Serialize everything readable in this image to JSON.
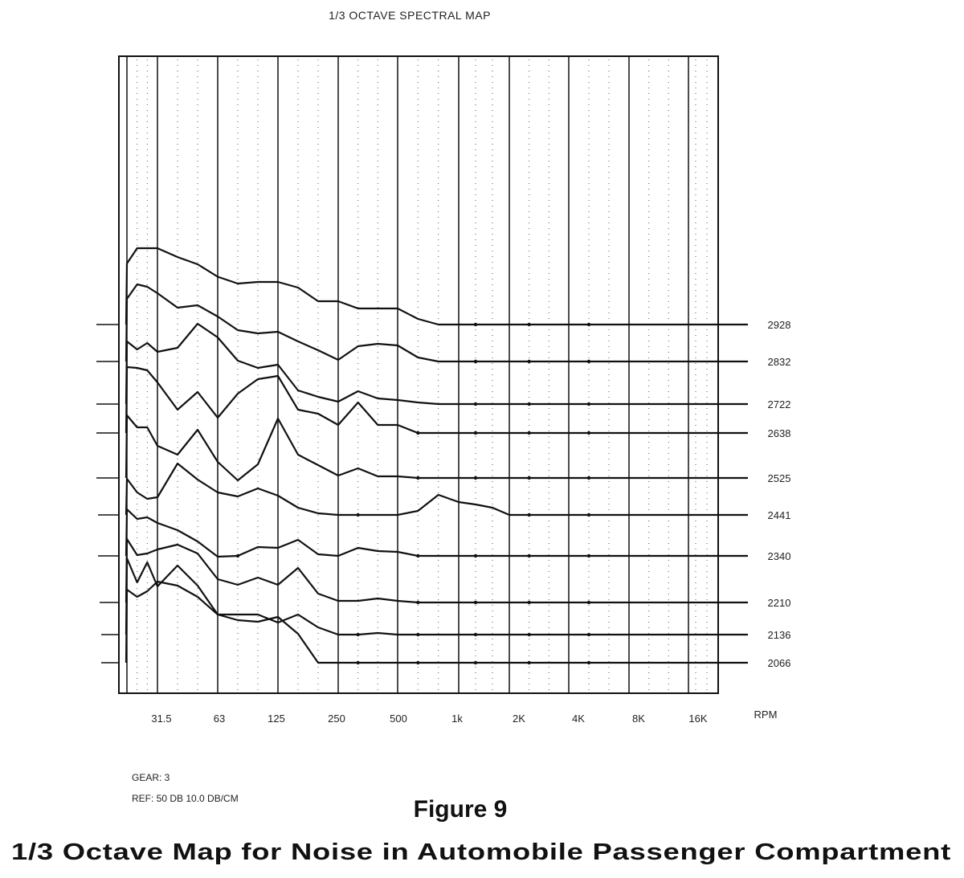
{
  "chart_data": {
    "type": "line",
    "title": "1/3 OCTAVE SPECTRAL MAP",
    "x_tick_labels": [
      "31.5",
      "63",
      "125",
      "250",
      "500",
      "1k",
      "2K",
      "4K",
      "8K",
      "16K"
    ],
    "x_axis_unit_label": "RPM",
    "x_tick_bands": [
      2,
      5,
      8,
      11,
      14,
      17,
      20,
      23,
      26,
      29
    ],
    "y_scale_db_per_cm": 10.0,
    "reference_db": 50,
    "series": [
      {
        "name": "2928",
        "values": [
          [
            0,
            0
          ],
          [
            1,
            1.52
          ],
          [
            2,
            1.9
          ],
          [
            3,
            1.9
          ],
          [
            4,
            1.9
          ],
          [
            5,
            1.68
          ],
          [
            6,
            1.5
          ],
          [
            7,
            1.19
          ],
          [
            8,
            1.02
          ],
          [
            9,
            1.06
          ],
          [
            10,
            1.06
          ],
          [
            11,
            0.92
          ],
          [
            12,
            0.58
          ],
          [
            13,
            0.58
          ],
          [
            14,
            0.4
          ],
          [
            15,
            0.4
          ],
          [
            16,
            0.4
          ],
          [
            17,
            0.14
          ],
          [
            18,
            0
          ],
          [
            19,
            0
          ],
          [
            20,
            0
          ],
          [
            21,
            0
          ],
          [
            22,
            0
          ],
          [
            23,
            0
          ],
          [
            24,
            0
          ],
          [
            25,
            0
          ],
          [
            26,
            0
          ],
          [
            27,
            0
          ],
          [
            28,
            0
          ],
          [
            29,
            0
          ],
          [
            30,
            0
          ],
          [
            31,
            0
          ],
          [
            32,
            0
          ]
        ]
      },
      {
        "name": "2832",
        "values": [
          [
            0,
            0
          ],
          [
            1,
            1.56
          ],
          [
            2,
            1.92
          ],
          [
            3,
            1.86
          ],
          [
            4,
            1.7
          ],
          [
            5,
            1.34
          ],
          [
            6,
            1.4
          ],
          [
            7,
            1.12
          ],
          [
            8,
            0.78
          ],
          [
            9,
            0.7
          ],
          [
            10,
            0.74
          ],
          [
            11,
            0.5
          ],
          [
            12,
            0.28
          ],
          [
            13,
            0.04
          ],
          [
            14,
            0.38
          ],
          [
            15,
            0.44
          ],
          [
            16,
            0.4
          ],
          [
            17,
            0.1
          ],
          [
            18,
            0
          ],
          [
            19,
            0
          ],
          [
            20,
            0
          ],
          [
            21,
            0
          ],
          [
            22,
            0
          ],
          [
            23,
            0
          ],
          [
            24,
            0
          ],
          [
            25,
            0
          ],
          [
            26,
            0
          ],
          [
            27,
            0
          ],
          [
            28,
            0
          ],
          [
            29,
            0
          ],
          [
            30,
            0
          ],
          [
            31,
            0
          ],
          [
            32,
            0
          ]
        ]
      },
      {
        "name": "2722",
        "values": [
          [
            0,
            0
          ],
          [
            1,
            1.56
          ],
          [
            2,
            1.36
          ],
          [
            3,
            1.52
          ],
          [
            4,
            1.3
          ],
          [
            5,
            1.4
          ],
          [
            6,
            2
          ],
          [
            7,
            1.66
          ],
          [
            8,
            1.08
          ],
          [
            9,
            0.9
          ],
          [
            10,
            0.98
          ],
          [
            11,
            0.34
          ],
          [
            12,
            0.18
          ],
          [
            13,
            0.06
          ],
          [
            14,
            0.32
          ],
          [
            15,
            0.14
          ],
          [
            16,
            0.1
          ],
          [
            17,
            0.04
          ],
          [
            18,
            0
          ],
          [
            19,
            0
          ],
          [
            20,
            0
          ],
          [
            21,
            0
          ],
          [
            22,
            0
          ],
          [
            23,
            0
          ],
          [
            24,
            0
          ],
          [
            25,
            0
          ],
          [
            26,
            0
          ],
          [
            27,
            0
          ],
          [
            28,
            0
          ],
          [
            29,
            0
          ],
          [
            30,
            0
          ],
          [
            31,
            0
          ],
          [
            32,
            0
          ]
        ]
      },
      {
        "name": "2638",
        "values": [
          [
            0,
            0
          ],
          [
            1,
            1.64
          ],
          [
            2,
            1.62
          ],
          [
            3,
            1.56
          ],
          [
            4,
            1.26
          ],
          [
            5,
            0.58
          ],
          [
            6,
            1.02
          ],
          [
            7,
            0.38
          ],
          [
            8,
            0.98
          ],
          [
            9,
            1.34
          ],
          [
            10,
            1.42
          ],
          [
            11,
            0.58
          ],
          [
            12,
            0.48
          ],
          [
            13,
            0.2
          ],
          [
            14,
            0.76
          ],
          [
            15,
            0.2
          ],
          [
            16,
            0.2
          ],
          [
            17,
            0
          ],
          [
            18,
            0
          ],
          [
            19,
            0
          ],
          [
            20,
            0
          ],
          [
            21,
            0
          ],
          [
            22,
            0
          ],
          [
            23,
            0
          ],
          [
            24,
            0
          ],
          [
            25,
            0
          ],
          [
            26,
            0
          ],
          [
            27,
            0
          ],
          [
            28,
            0
          ],
          [
            29,
            0
          ],
          [
            30,
            0
          ],
          [
            31,
            0
          ],
          [
            32,
            0
          ]
        ]
      },
      {
        "name": "2525",
        "values": [
          [
            0,
            0
          ],
          [
            1,
            1.56
          ],
          [
            2,
            1.26
          ],
          [
            3,
            1.26
          ],
          [
            4,
            0.8
          ],
          [
            5,
            0.58
          ],
          [
            6,
            1.2
          ],
          [
            7,
            0.4
          ],
          [
            8,
            -0.06
          ],
          [
            9,
            0.34
          ],
          [
            10,
            1.48
          ],
          [
            11,
            0.58
          ],
          [
            12,
            0.32
          ],
          [
            13,
            0.06
          ],
          [
            14,
            0.24
          ],
          [
            15,
            0.04
          ],
          [
            16,
            0.04
          ],
          [
            17,
            0
          ],
          [
            18,
            0
          ],
          [
            19,
            0
          ],
          [
            20,
            0
          ],
          [
            21,
            0
          ],
          [
            22,
            0
          ],
          [
            23,
            0
          ],
          [
            24,
            0
          ],
          [
            25,
            0
          ],
          [
            26,
            0
          ],
          [
            27,
            0
          ],
          [
            28,
            0
          ],
          [
            29,
            0
          ],
          [
            30,
            0
          ],
          [
            31,
            0
          ],
          [
            32,
            0
          ]
        ]
      },
      {
        "name": "2441",
        "values": [
          [
            0,
            0
          ],
          [
            1,
            0.9
          ],
          [
            2,
            0.56
          ],
          [
            3,
            0.4
          ],
          [
            4,
            0.44
          ],
          [
            5,
            1.28
          ],
          [
            6,
            0.88
          ],
          [
            7,
            0.56
          ],
          [
            8,
            0.46
          ],
          [
            9,
            0.66
          ],
          [
            10,
            0.48
          ],
          [
            11,
            0.18
          ],
          [
            12,
            0.04
          ],
          [
            13,
            0
          ],
          [
            14,
            0
          ],
          [
            15,
            0
          ],
          [
            16,
            0
          ],
          [
            17,
            0.1
          ],
          [
            18,
            0.5
          ],
          [
            19,
            0.32
          ],
          [
            20,
            0.26
          ],
          [
            21,
            0.18
          ],
          [
            22,
            0
          ],
          [
            23,
            0
          ],
          [
            24,
            0
          ],
          [
            25,
            0
          ],
          [
            26,
            0
          ],
          [
            27,
            0
          ],
          [
            28,
            0
          ],
          [
            29,
            0
          ],
          [
            30,
            0
          ],
          [
            31,
            0
          ],
          [
            32,
            0
          ]
        ]
      },
      {
        "name": "2340",
        "values": [
          [
            0,
            0
          ],
          [
            1,
            1.16
          ],
          [
            2,
            0.92
          ],
          [
            3,
            0.96
          ],
          [
            4,
            0.82
          ],
          [
            5,
            0.64
          ],
          [
            6,
            0.36
          ],
          [
            7,
            -0.02
          ],
          [
            8,
            0
          ],
          [
            9,
            0.22
          ],
          [
            10,
            0.2
          ],
          [
            11,
            0.4
          ],
          [
            12,
            0.04
          ],
          [
            13,
            0
          ],
          [
            14,
            0.2
          ],
          [
            15,
            0.12
          ],
          [
            16,
            0.1
          ],
          [
            17,
            0
          ],
          [
            18,
            0
          ],
          [
            19,
            0
          ],
          [
            20,
            0
          ],
          [
            21,
            0
          ],
          [
            22,
            0
          ],
          [
            23,
            0
          ],
          [
            24,
            0
          ],
          [
            25,
            0
          ],
          [
            26,
            0
          ],
          [
            27,
            0
          ],
          [
            28,
            0
          ],
          [
            29,
            0
          ],
          [
            30,
            0
          ],
          [
            31,
            0
          ],
          [
            32,
            0
          ]
        ]
      },
      {
        "name": "2210",
        "values": [
          [
            0,
            0
          ],
          [
            1,
            1.58
          ],
          [
            2,
            1.18
          ],
          [
            3,
            1.22
          ],
          [
            4,
            1.32
          ],
          [
            5,
            1.44
          ],
          [
            6,
            1.22
          ],
          [
            7,
            0.58
          ],
          [
            8,
            0.44
          ],
          [
            9,
            0.62
          ],
          [
            10,
            0.44
          ],
          [
            11,
            0.86
          ],
          [
            12,
            0.22
          ],
          [
            13,
            0.04
          ],
          [
            14,
            0.04
          ],
          [
            15,
            0.1
          ],
          [
            16,
            0.04
          ],
          [
            17,
            0
          ],
          [
            18,
            0
          ],
          [
            19,
            0
          ],
          [
            20,
            0
          ],
          [
            21,
            0
          ],
          [
            22,
            0
          ],
          [
            23,
            0
          ],
          [
            24,
            0
          ],
          [
            25,
            0
          ],
          [
            26,
            0
          ],
          [
            27,
            0
          ],
          [
            28,
            0
          ],
          [
            29,
            0
          ],
          [
            30,
            0
          ],
          [
            31,
            0
          ],
          [
            32,
            0
          ]
        ]
      },
      {
        "name": "2136",
        "values": [
          [
            0,
            0
          ],
          [
            1,
            1.9
          ],
          [
            2,
            1.3
          ],
          [
            3,
            1.8
          ],
          [
            4,
            1.2
          ],
          [
            5,
            1.72
          ],
          [
            6,
            1.22
          ],
          [
            7,
            0.5
          ],
          [
            8,
            0.5
          ],
          [
            9,
            0.5
          ],
          [
            10,
            0.3
          ],
          [
            11,
            0.5
          ],
          [
            12,
            0.18
          ],
          [
            13,
            0
          ],
          [
            14,
            0
          ],
          [
            15,
            0.04
          ],
          [
            16,
            0
          ],
          [
            17,
            0
          ],
          [
            18,
            0
          ],
          [
            19,
            0
          ],
          [
            20,
            0
          ],
          [
            21,
            0
          ],
          [
            22,
            0
          ],
          [
            23,
            0
          ],
          [
            24,
            0
          ],
          [
            25,
            0
          ],
          [
            26,
            0
          ],
          [
            27,
            0
          ],
          [
            28,
            0
          ],
          [
            29,
            0
          ],
          [
            30,
            0
          ],
          [
            31,
            0
          ],
          [
            32,
            0
          ]
        ]
      },
      {
        "name": "2066",
        "values": [
          [
            0,
            0
          ],
          [
            1,
            1.82
          ],
          [
            2,
            1.64
          ],
          [
            3,
            1.78
          ],
          [
            4,
            2.02
          ],
          [
            5,
            1.92
          ],
          [
            6,
            1.64
          ],
          [
            7,
            1.2
          ],
          [
            8,
            1.06
          ],
          [
            9,
            1.02
          ],
          [
            10,
            1.14
          ],
          [
            11,
            0.72
          ],
          [
            12,
            0
          ],
          [
            13,
            0
          ],
          [
            14,
            0
          ],
          [
            15,
            0
          ],
          [
            16,
            0
          ],
          [
            17,
            0
          ],
          [
            18,
            0
          ],
          [
            19,
            0
          ],
          [
            20,
            0
          ],
          [
            21,
            0
          ],
          [
            22,
            0
          ],
          [
            23,
            0
          ],
          [
            24,
            0
          ],
          [
            25,
            0
          ],
          [
            26,
            0
          ],
          [
            27,
            0
          ],
          [
            28,
            0
          ],
          [
            29,
            0
          ],
          [
            30,
            0
          ],
          [
            31,
            0
          ],
          [
            32,
            0
          ]
        ]
      }
    ]
  },
  "notes": {
    "gear": "GEAR: 3",
    "ref": "REF: 50 DB 10.0 DB/CM"
  },
  "caption": {
    "figure_number": "Figure 9",
    "title": "1/3 Octave Map for Noise in Automobile Passenger Compartment"
  }
}
